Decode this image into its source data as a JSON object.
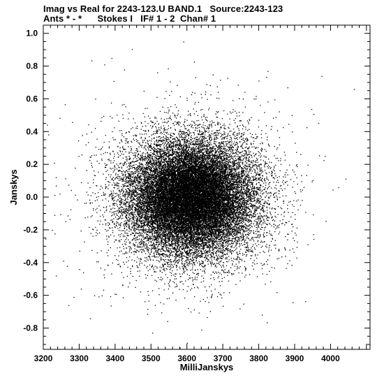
{
  "chart_data": {
    "type": "scatter",
    "title_line1": "Imag vs Real for 2243-123.U BAND.1   Source:2243-123",
    "title_line2": "Ants * - *      Stokes I   IF# 1 - 2  Chan# 1",
    "xlabel": "MilliJanskys",
    "ylabel": "Janskys",
    "xlim": [
      3200,
      4110
    ],
    "ylim": [
      -0.93,
      1.05
    ],
    "xticks": [
      3200,
      3300,
      3400,
      3500,
      3600,
      3700,
      3800,
      3900,
      4000
    ],
    "yticks": [
      1.0,
      0.8,
      0.6,
      0.4,
      0.2,
      0.0,
      -0.2,
      -0.4,
      -0.6,
      -0.8
    ],
    "ytick_labels": [
      "1.0",
      "0.8",
      "0.6",
      "0.4",
      "0.2",
      "0.0",
      "-0.2",
      "-0.4",
      "-0.6",
      "-0.8"
    ],
    "distribution": {
      "shape": "approximately gaussian cloud",
      "center_x": 3610,
      "center_y": 0.0,
      "approx_points": 26000,
      "x_spread_sigma": 85,
      "y_spread_sigma": 0.17
    },
    "notable_points": [
      {
        "x": 3590,
        "y": 0.95
      },
      {
        "x": 3390,
        "y": 0.85
      },
      {
        "x": 3370,
        "y": 0.81
      },
      {
        "x": 3425,
        "y": 0.78
      },
      {
        "x": 3825,
        "y": 0.77
      },
      {
        "x": 3975,
        "y": 0.74
      },
      {
        "x": 4065,
        "y": 0.66
      },
      {
        "x": 3230,
        "y": 0.21
      },
      {
        "x": 3235,
        "y": 0.07
      },
      {
        "x": 3235,
        "y": -0.48
      },
      {
        "x": 3270,
        "y": -0.66
      },
      {
        "x": 3330,
        "y": -0.74
      },
      {
        "x": 3580,
        "y": -0.92
      },
      {
        "x": 3600,
        "y": -0.89
      },
      {
        "x": 3640,
        "y": -0.81
      }
    ],
    "grid": false,
    "legend": "none"
  }
}
